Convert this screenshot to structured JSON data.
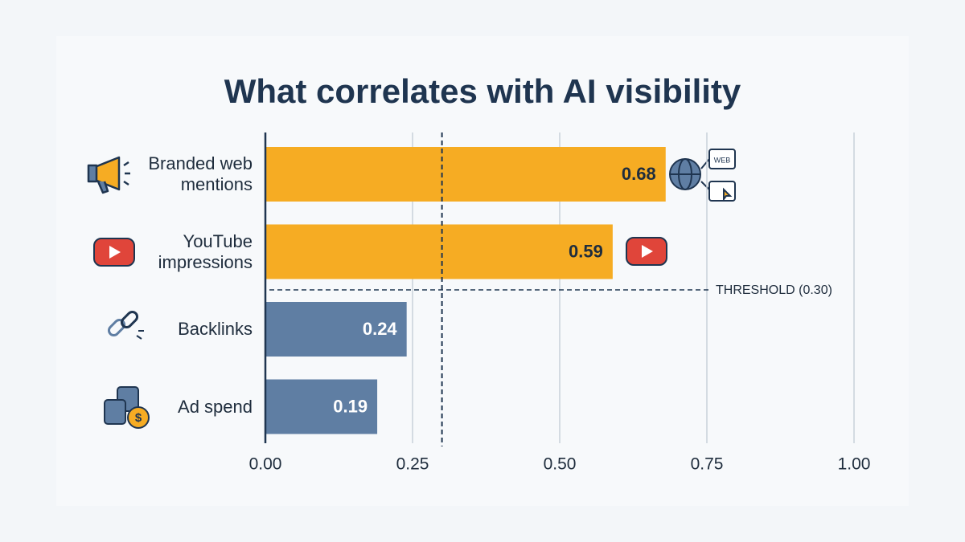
{
  "chart_data": {
    "type": "hbar",
    "title": "What correlates with AI visibility",
    "categories": [
      "Branded web mentions",
      "YouTube impressions",
      "Backlinks",
      "Ad spend"
    ],
    "values": [
      0.68,
      0.59,
      0.24,
      0.19
    ],
    "colors": [
      "#f6ac23",
      "#f6ac23",
      "#5f7ea3",
      "#5f7ea3"
    ],
    "xlim": [
      0,
      1
    ],
    "xticks": [
      {
        "value": 0,
        "label": "0.00"
      },
      0.25,
      {
        "value": 0.5,
        "label": "0.50"
      },
      0.75,
      {
        "value": 1,
        "label": "1.00"
      }
    ],
    "grid": true,
    "threshold": {
      "value": 0.3,
      "label": "THRESHOLD (0.30)"
    }
  }
}
